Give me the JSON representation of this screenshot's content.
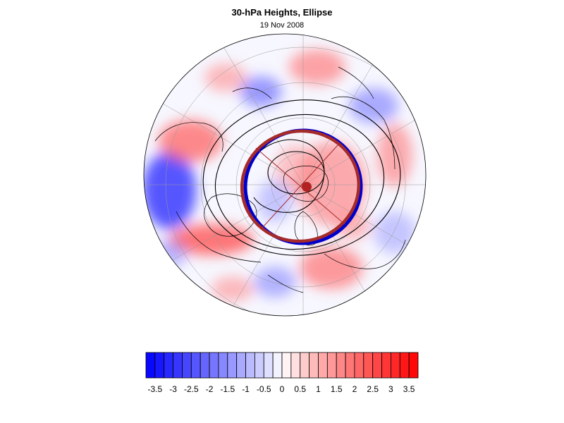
{
  "title": "30-hPa Heights, Ellipse",
  "subtitle": "19 Nov 2008",
  "colorbar": {
    "tick_labels": [
      "-3.5",
      "-3",
      "-2.5",
      "-2",
      "-1.5",
      "-1",
      "-0.5",
      "0",
      "0.5",
      "1",
      "1.5",
      "2",
      "2.5",
      "3",
      "3.5"
    ],
    "min": -3.75,
    "max": 3.75,
    "step": 0.25,
    "color_negative_end": "#0000ff",
    "color_positive_end": "#ff0000",
    "color_center": "#ffffff"
  },
  "map": {
    "projection": "north-polar-stereographic",
    "anomaly_colors": {
      "blue": "#3a3aff",
      "red": "#ff3a3a"
    },
    "ellipse_colors": {
      "observed": "#0000cc",
      "fitted": "#a52a2a"
    },
    "center_marker_color": "#b22222",
    "contour_color": "#000000"
  }
}
